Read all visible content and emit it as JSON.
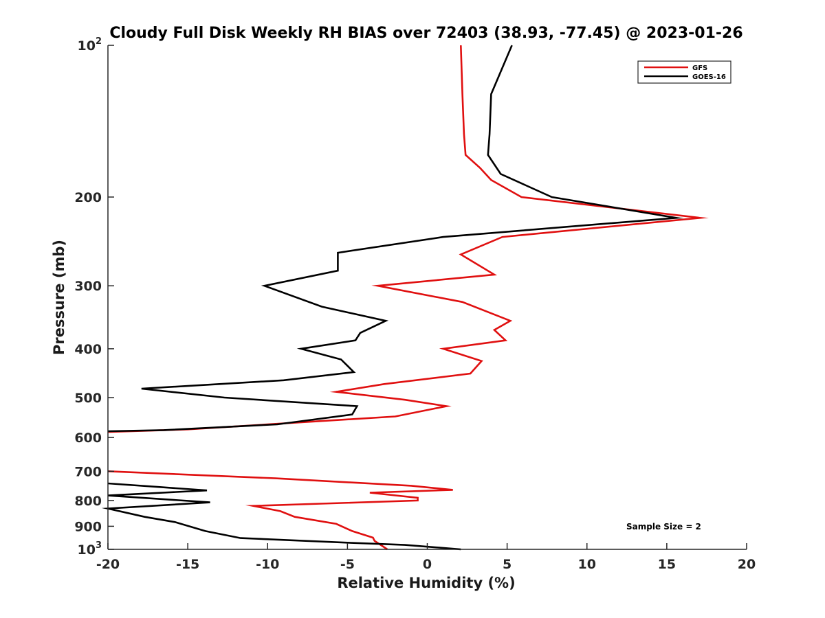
{
  "chart_data": {
    "type": "line",
    "title": "Cloudy Full Disk Weekly RH BIAS over 72403 (38.93, -77.45) @ 2023-01-26",
    "xlabel": "Relative Humidity (%)",
    "ylabel": "Pressure (mb)",
    "xlim": [
      -20,
      20
    ],
    "ylim": [
      100,
      1000
    ],
    "y_scale": "log",
    "y_direction": "reversed",
    "x_ticks": [
      "-20",
      "-15",
      "-10",
      "-5",
      "0",
      "5",
      "10",
      "15",
      "20"
    ],
    "y_ticks": [
      {
        "value": 100,
        "base": "10",
        "exp": "2"
      },
      {
        "value": 200,
        "label": "200"
      },
      {
        "value": 300,
        "label": "300"
      },
      {
        "value": 400,
        "label": "400"
      },
      {
        "value": 500,
        "label": "500"
      },
      {
        "value": 600,
        "label": "600"
      },
      {
        "value": 700,
        "label": "700"
      },
      {
        "value": 800,
        "label": "800"
      },
      {
        "value": 900,
        "label": "900"
      },
      {
        "value": 1000,
        "base": "10",
        "exp": "3"
      }
    ],
    "grid": false,
    "legend_position": "top-right",
    "annotation": "Sample Size = 2",
    "series": [
      {
        "name": "GFS",
        "color": "#e01010",
        "segments": [
          [
            [
              2.1,
              100
            ],
            [
              2.2,
              125
            ],
            [
              2.3,
              150
            ],
            [
              2.4,
              165
            ],
            [
              3.3,
              175
            ],
            [
              4.0,
              185
            ],
            [
              5.9,
              200
            ],
            [
              17.1,
              220
            ],
            [
              4.7,
              240
            ],
            [
              2.1,
              260
            ],
            [
              4.2,
              285
            ],
            [
              -3.1,
              300
            ],
            [
              2.2,
              323
            ],
            [
              5.2,
              352
            ],
            [
              4.2,
              367
            ],
            [
              4.9,
              385
            ],
            [
              1.0,
              400
            ],
            [
              3.4,
              423
            ],
            [
              2.7,
              448
            ],
            [
              -2.7,
              470
            ],
            [
              -5.7,
              487
            ],
            [
              -1.4,
              505
            ],
            [
              1.2,
              520
            ],
            [
              -2.0,
              545
            ],
            [
              -15.0,
              578
            ],
            [
              -20.0,
              585
            ]
          ],
          [
            [
              -20.0,
              700
            ],
            [
              -9.5,
              723
            ],
            [
              -1.0,
              748
            ],
            [
              1.6,
              762
            ],
            [
              -3.6,
              772
            ],
            [
              -0.6,
              790
            ],
            [
              -0.6,
              800
            ],
            [
              -10.9,
              820
            ],
            [
              -9.2,
              840
            ],
            [
              -8.3,
              862
            ],
            [
              -5.7,
              890
            ],
            [
              -4.7,
              920
            ],
            [
              -3.4,
              948
            ],
            [
              -3.3,
              962
            ],
            [
              -2.5,
              1000
            ]
          ]
        ]
      },
      {
        "name": "GOES-16",
        "color": "#000000",
        "segments": [
          [
            [
              5.3,
              100
            ],
            [
              4.0,
              125
            ],
            [
              3.9,
              150
            ],
            [
              3.8,
              165
            ],
            [
              4.6,
              180
            ],
            [
              7.8,
              200
            ],
            [
              15.6,
              220
            ],
            [
              1.0,
              240
            ],
            [
              -5.6,
              258
            ],
            [
              -5.6,
              280
            ],
            [
              -10.2,
              300
            ],
            [
              -6.6,
              330
            ],
            [
              -2.6,
              352
            ],
            [
              -4.2,
              372
            ],
            [
              -4.5,
              385
            ],
            [
              -7.9,
              400
            ],
            [
              -5.4,
              420
            ],
            [
              -4.6,
              445
            ],
            [
              -9.0,
              462
            ],
            [
              -17.9,
              480
            ],
            [
              -12.7,
              500
            ],
            [
              -4.4,
              520
            ],
            [
              -4.7,
              540
            ],
            [
              -9.4,
              565
            ],
            [
              -16.5,
              580
            ],
            [
              -20.0,
              583
            ]
          ],
          [
            [
              -20.0,
              740
            ],
            [
              -16.9,
              752
            ],
            [
              -13.8,
              764
            ],
            [
              -20.0,
              782
            ],
            [
              -13.6,
              807
            ],
            [
              -20.0,
              830
            ],
            [
              -17.7,
              862
            ],
            [
              -15.8,
              883
            ],
            [
              -13.9,
              920
            ],
            [
              -11.7,
              950
            ],
            [
              -5.0,
              970
            ],
            [
              -1.4,
              980
            ],
            [
              2.1,
              1000
            ]
          ],
          [
            [
              -20.0,
              848
            ],
            [
              -20.0,
              848
            ]
          ]
        ]
      }
    ]
  }
}
